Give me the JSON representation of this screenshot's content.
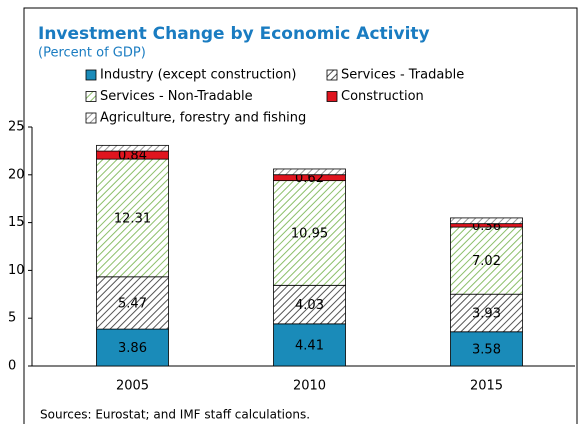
{
  "chart_data": {
    "type": "stacked_bar",
    "title": "Investment Change by Economic Activity",
    "subtitle": "(Percent of GDP)",
    "source": "Sources: Eurostat; and IMF staff calculations.",
    "categories": [
      "2005",
      "2010",
      "2015"
    ],
    "series": [
      {
        "name": "Industry (except construction)",
        "color": "#1a8bb9",
        "hatch": false,
        "show_labels": true,
        "values": [
          3.86,
          4.41,
          3.58
        ]
      },
      {
        "name": "Services - Tradable",
        "color": "#555555",
        "hatch": true,
        "show_labels": true,
        "values": [
          5.47,
          4.03,
          3.93
        ]
      },
      {
        "name": "Services - Non-Tradable",
        "color": "#8cbf6a",
        "hatch": true,
        "show_labels": true,
        "values": [
          12.31,
          10.95,
          7.02
        ]
      },
      {
        "name": "Construction",
        "color": "#e0151f",
        "hatch": false,
        "show_labels": true,
        "values": [
          0.84,
          0.62,
          0.36
        ]
      },
      {
        "name": "Agriculture, forestry and fishing",
        "color": "#9a9a9a",
        "hatch": true,
        "show_labels": false,
        "values": [
          0.6,
          0.6,
          0.6
        ]
      }
    ],
    "ylim": [
      0,
      25
    ],
    "yticks": [
      0,
      5,
      10,
      15,
      20,
      25
    ],
    "grid": false
  }
}
